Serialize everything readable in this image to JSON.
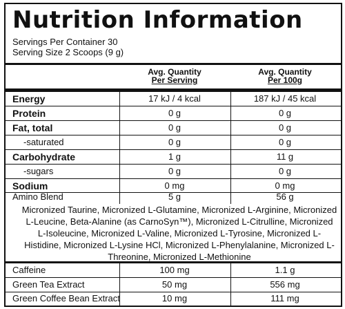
{
  "title": "Nutrition Information",
  "servings_per_container": "Servings Per Container 30",
  "serving_size": "Serving Size 2 Scoops (9 g)",
  "columns": {
    "per_serving": {
      "line1": "Avg. Quantity",
      "line2": "Per Serving"
    },
    "per_100g": {
      "line1": "Avg. Quantity",
      "line2": "Per 100g"
    }
  },
  "rows": [
    {
      "name": "Energy",
      "per_serving": "17 kJ / 4 kcal",
      "per_100g": "187 kJ / 45 kcal"
    },
    {
      "name": "Protein",
      "per_serving": "0 g",
      "per_100g": "0 g"
    },
    {
      "name": "Fat, total",
      "per_serving": "0 g",
      "per_100g": "0 g"
    },
    {
      "name": "-saturated",
      "per_serving": "0 g",
      "per_100g": "0 g"
    },
    {
      "name": "Carbohydrate",
      "per_serving": "1 g",
      "per_100g": "11 g"
    },
    {
      "name": "-sugars",
      "per_serving": "0 g",
      "per_100g": "0 g"
    },
    {
      "name": "Sodium",
      "per_serving": "0 mg",
      "per_100g": "0 mg"
    },
    {
      "name": "Amino Blend",
      "per_serving": "5 g",
      "per_100g": "56 g"
    }
  ],
  "amino_blend_ingredients": "Micronized Taurine, Micronized L-Glutamine, Micronized L-Arginine, Micronized L-Leucine, Beta-Alanine (as CarnoSyn™), Micronized L-Citrulline, Micronized L-Isoleucine, Micronized L-Valine, Micronized L-Tyrosine, Micronized L-Histidine, Micronized L-Lysine HCl, Micronized L-Phenylalanine, Micronized L-Threonine, Micronized L-Methionine",
  "extra_rows": [
    {
      "name": "Caffeine",
      "per_serving": "100 mg",
      "per_100g": "1.1 g"
    },
    {
      "name": "Green Tea Extract",
      "per_serving": "50 mg",
      "per_100g": "556 mg"
    },
    {
      "name": "Green Coffee Bean Extract",
      "per_serving": "10 mg",
      "per_100g": "111 mg"
    }
  ]
}
